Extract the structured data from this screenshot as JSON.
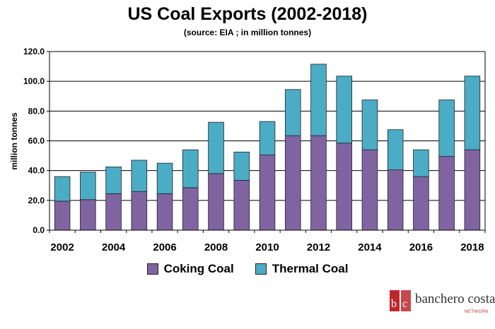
{
  "chart_data": {
    "type": "bar",
    "stacked": true,
    "title": "US Coal Exports (2002-2018)",
    "subtitle": "(source: EIA ; in million tonnes)",
    "ylabel": "million tonnes",
    "xlabel": "",
    "ylim": [
      0,
      120
    ],
    "yticks": [
      "0.0",
      "20.0",
      "40.0",
      "60.0",
      "80.0",
      "100.0",
      "120.0"
    ],
    "grid": true,
    "legend_position": "bottom",
    "categories": [
      "2002",
      "2003",
      "2004",
      "2005",
      "2006",
      "2007",
      "2008",
      "2009",
      "2010",
      "2011",
      "2012",
      "2013",
      "2014",
      "2015",
      "2016",
      "2017",
      "2018"
    ],
    "x_tick_labels": [
      "2002",
      "",
      "2004",
      "",
      "2006",
      "",
      "2008",
      "",
      "2010",
      "",
      "2012",
      "",
      "2014",
      "",
      "2016",
      "",
      "2018"
    ],
    "series": [
      {
        "name": "Coking Coal",
        "color": "#8064a2",
        "values": [
          19.5,
          20.5,
          24.5,
          26,
          24.5,
          28.5,
          38,
          33.5,
          50.5,
          63.5,
          63.5,
          58.5,
          54,
          40.5,
          36,
          49.5,
          54
        ]
      },
      {
        "name": "Thermal Coal",
        "color": "#4bacc6",
        "values": [
          16.5,
          18.5,
          18,
          21,
          20.5,
          25.5,
          34.5,
          19,
          22.5,
          31,
          48,
          45,
          33.5,
          27,
          18,
          38,
          49.5
        ]
      }
    ]
  },
  "brand": {
    "name": "banchero costa",
    "sub": "NETWORK",
    "mark_letters": "bc",
    "color": "#c0272d"
  }
}
